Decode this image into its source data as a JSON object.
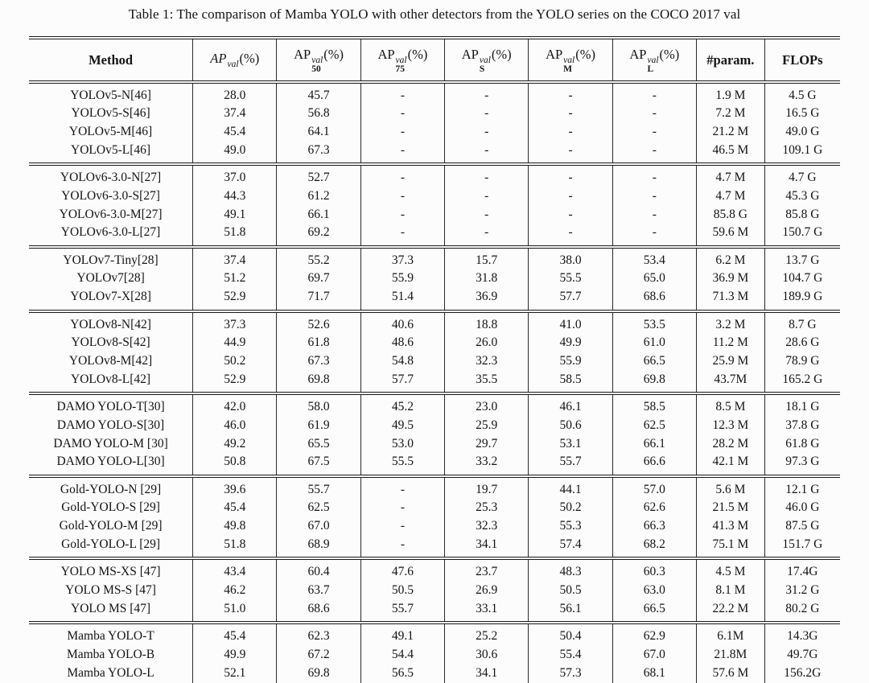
{
  "caption": "Table 1: The comparison of Mamba YOLO with other detectors from the YOLO series on the COCO 2017 val",
  "table": {
    "columns": [
      {
        "key": "method",
        "label": "Method"
      },
      {
        "key": "ap-val",
        "prefix": "AP",
        "prefix_style": "italic",
        "sup": "val",
        "sub": "",
        "suffix": "(%)"
      },
      {
        "key": "ap50-val",
        "prefix": "AP",
        "sup": "val",
        "sub": "50",
        "suffix": "(%)"
      },
      {
        "key": "ap75-val",
        "prefix": "AP",
        "sup": "val",
        "sub": "75",
        "suffix": "(%)"
      },
      {
        "key": "ap-s-val",
        "prefix": "AP",
        "sup": "val",
        "sub": "S",
        "suffix": "(%)"
      },
      {
        "key": "ap-m-val",
        "prefix": "AP",
        "sup": "val",
        "sub": "M",
        "suffix": "(%)"
      },
      {
        "key": "ap-l-val",
        "prefix": "AP",
        "sup": "val",
        "sub": "L",
        "suffix": "(%)"
      },
      {
        "key": "params",
        "label": "#param."
      },
      {
        "key": "flops",
        "label": "FLOPs"
      }
    ],
    "groups": [
      {
        "rows": [
          [
            "YOLOv5-N[46]",
            "28.0",
            "45.7",
            "-",
            "-",
            "-",
            "-",
            "1.9 M",
            "4.5 G"
          ],
          [
            "YOLOv5-S[46]",
            "37.4",
            "56.8",
            "-",
            "-",
            "-",
            "-",
            "7.2 M",
            "16.5 G"
          ],
          [
            "YOLOv5-M[46]",
            "45.4",
            "64.1",
            "-",
            "-",
            "-",
            "-",
            "21.2 M",
            "49.0 G"
          ],
          [
            "YOLOv5-L[46]",
            "49.0",
            "67.3",
            "-",
            "-",
            "-",
            "-",
            "46.5 M",
            "109.1 G"
          ]
        ]
      },
      {
        "rows": [
          [
            "YOLOv6-3.0-N[27]",
            "37.0",
            "52.7",
            "-",
            "-",
            "-",
            "-",
            "4.7 M",
            "4.7 G"
          ],
          [
            "YOLOv6-3.0-S[27]",
            "44.3",
            "61.2",
            "-",
            "-",
            "-",
            "-",
            "4.7 M",
            "45.3 G"
          ],
          [
            "YOLOv6-3.0-M[27]",
            "49.1",
            "66.1",
            "-",
            "-",
            "-",
            "-",
            "85.8 G",
            "85.8 G"
          ],
          [
            "YOLOv6-3.0-L[27]",
            "51.8",
            "69.2",
            "-",
            "-",
            "-",
            "-",
            "59.6 M",
            "150.7 G"
          ]
        ]
      },
      {
        "rows": [
          [
            "YOLOv7-Tiny[28]",
            "37.4",
            "55.2",
            "37.3",
            "15.7",
            "38.0",
            "53.4",
            "6.2 M",
            "13.7 G"
          ],
          [
            "YOLOv7[28]",
            "51.2",
            "69.7",
            "55.9",
            "31.8",
            "55.5",
            "65.0",
            "36.9 M",
            "104.7 G"
          ],
          [
            "YOLOv7-X[28]",
            "52.9",
            "71.7",
            "51.4",
            "36.9",
            "57.7",
            "68.6",
            "71.3 M",
            "189.9 G"
          ]
        ]
      },
      {
        "rows": [
          [
            "YOLOv8-N[42]",
            "37.3",
            "52.6",
            "40.6",
            "18.8",
            "41.0",
            "53.5",
            "3.2 M",
            "8.7 G"
          ],
          [
            "YOLOv8-S[42]",
            "44.9",
            "61.8",
            "48.6",
            "26.0",
            "49.9",
            "61.0",
            "11.2 M",
            "28.6 G"
          ],
          [
            "YOLOv8-M[42]",
            "50.2",
            "67.3",
            "54.8",
            "32.3",
            "55.9",
            "66.5",
            "25.9 M",
            "78.9 G"
          ],
          [
            "YOLOv8-L[42]",
            "52.9",
            "69.8",
            "57.7",
            "35.5",
            "58.5",
            "69.8",
            "43.7M",
            "165.2 G"
          ]
        ]
      },
      {
        "rows": [
          [
            "DAMO YOLO-T[30]",
            "42.0",
            "58.0",
            "45.2",
            "23.0",
            "46.1",
            "58.5",
            "8.5 M",
            "18.1 G"
          ],
          [
            "DAMO YOLO-S[30]",
            "46.0",
            "61.9",
            "49.5",
            "25.9",
            "50.6",
            "62.5",
            "12.3 M",
            "37.8 G"
          ],
          [
            "DAMO YOLO-M [30]",
            "49.2",
            "65.5",
            "53.0",
            "29.7",
            "53.1",
            "66.1",
            "28.2 M",
            "61.8 G"
          ],
          [
            "DAMO YOLO-L[30]",
            "50.8",
            "67.5",
            "55.5",
            "33.2",
            "55.7",
            "66.6",
            "42.1 M",
            "97.3 G"
          ]
        ]
      },
      {
        "rows": [
          [
            "Gold-YOLO-N [29]",
            "39.6",
            "55.7",
            "-",
            "19.7",
            "44.1",
            "57.0",
            "5.6 M",
            "12.1 G"
          ],
          [
            "Gold-YOLO-S [29]",
            "45.4",
            "62.5",
            "-",
            "25.3",
            "50.2",
            "62.6",
            "21.5 M",
            "46.0 G"
          ],
          [
            "Gold-YOLO-M [29]",
            "49.8",
            "67.0",
            "-",
            "32.3",
            "55.3",
            "66.3",
            "41.3 M",
            "87.5 G"
          ],
          [
            "Gold-YOLO-L [29]",
            "51.8",
            "68.9",
            "-",
            "34.1",
            "57.4",
            "68.2",
            "75.1 M",
            "151.7 G"
          ]
        ]
      },
      {
        "rows": [
          [
            "YOLO MS-XS [47]",
            "43.4",
            "60.4",
            "47.6",
            "23.7",
            "48.3",
            "60.3",
            "4.5 M",
            "17.4G"
          ],
          [
            "YOLO MS-S [47]",
            "46.2",
            "63.7",
            "50.5",
            "26.9",
            "50.5",
            "63.0",
            "8.1 M",
            "31.2 G"
          ],
          [
            "YOLO MS [47]",
            "51.0",
            "68.6",
            "55.7",
            "33.1",
            "56.1",
            "66.5",
            "22.2 M",
            "80.2 G"
          ]
        ]
      },
      {
        "rows": [
          [
            "Mamba YOLO-T",
            "45.4",
            "62.3",
            "49.1",
            "25.2",
            "50.4",
            "62.9",
            "6.1M",
            "14.3G"
          ],
          [
            "Mamba YOLO-B",
            "49.9",
            "67.2",
            "54.4",
            "30.6",
            "55.4",
            "67.0",
            "21.8M",
            "49.7G"
          ],
          [
            "Mamba YOLO-L",
            "52.1",
            "69.8",
            "56.5",
            "34.1",
            "57.3",
            "68.1",
            "57.6 M",
            "156.2G"
          ]
        ]
      }
    ]
  }
}
